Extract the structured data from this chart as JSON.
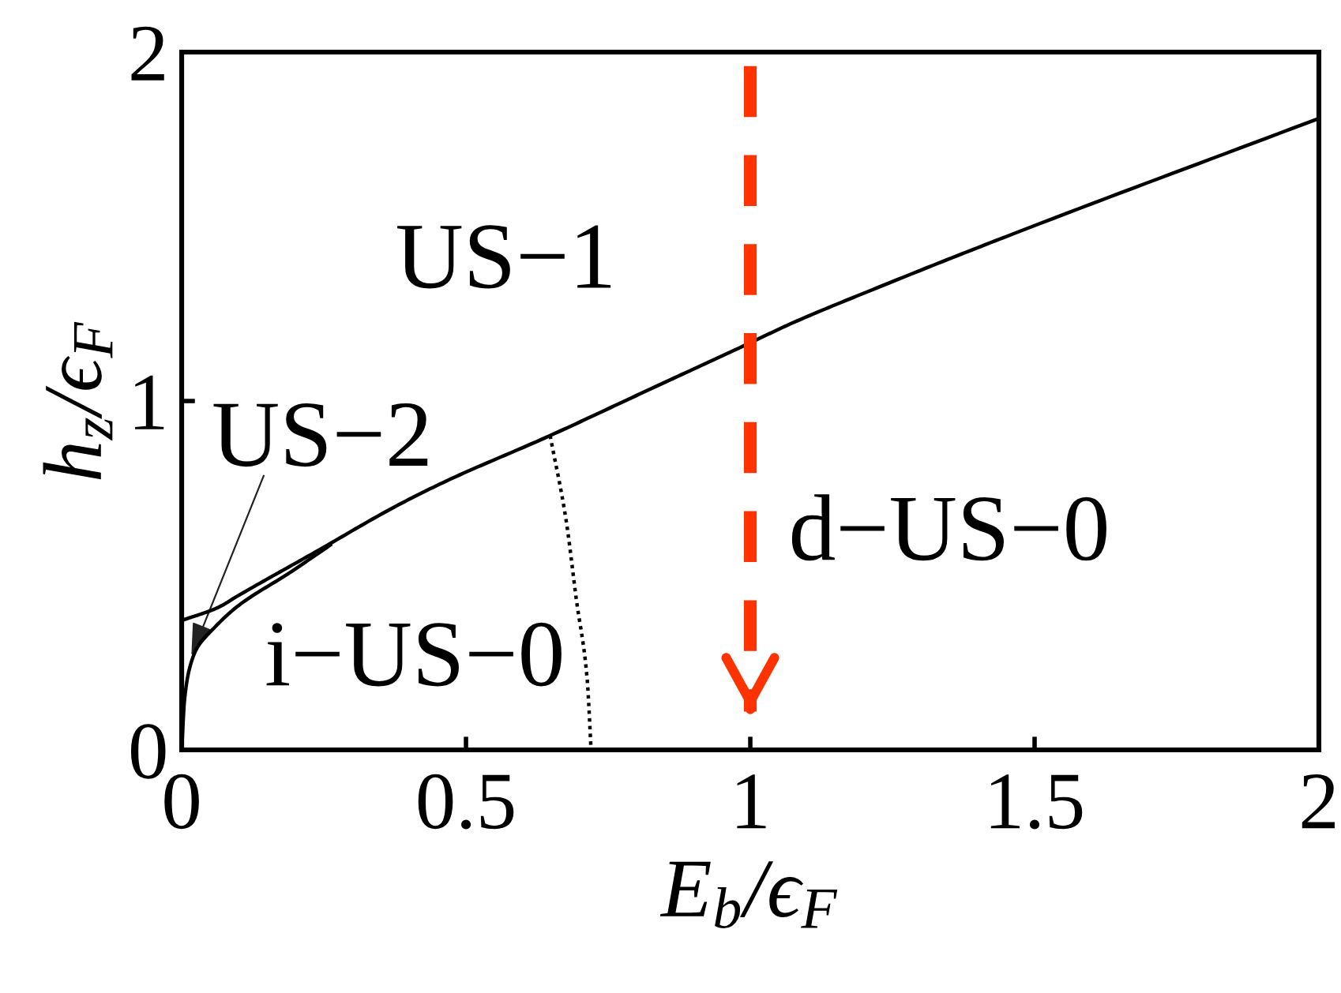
{
  "chart_data": {
    "type": "line",
    "xlabel": "E$_{b}$/ϵ$_{F}$",
    "ylabel": "h$_{z}$/ϵ$_{F}$",
    "xlim": [
      0,
      2
    ],
    "ylim": [
      0,
      2
    ],
    "xticks": [
      0,
      0.5,
      1,
      1.5,
      2
    ],
    "yticks": [
      0,
      1,
      2
    ],
    "series": [
      {
        "color": "#000000",
        "line_style": "solid",
        "x": [
          0,
          0.065,
          0.097,
          0.236,
          0.375,
          0.458,
          0.648,
          0.829,
          1.0,
          1.069,
          1.236,
          1.44,
          2.0
        ],
        "values": [
          0.371,
          0.409,
          0.44,
          0.568,
          0.697,
          0.765,
          0.901,
          1.038,
          1.167,
          1.22,
          1.333,
          1.465,
          1.81
        ]
      },
      {
        "color": "#000000",
        "line_style": "solid",
        "x": [
          0,
          0.005,
          0.014,
          0.028,
          0.056,
          0.097,
          0.19,
          0.264
        ],
        "values": [
          0,
          0.144,
          0.235,
          0.295,
          0.348,
          0.41,
          0.508,
          0.59
        ]
      },
      {
        "color": "#000000",
        "line_style": "dotted",
        "x": [
          0.648,
          0.676,
          0.694,
          0.713,
          0.72
        ],
        "values": [
          0.901,
          0.659,
          0.432,
          0.205,
          0
        ]
      },
      {
        "color": "#ff3300",
        "line_style": "dashed",
        "x": [
          1,
          1
        ],
        "values": [
          1.96,
          0.11
        ]
      }
    ],
    "annotations": [
      "US−1",
      {
        "text": "US−2",
        "x": 0.017,
        "y": 0.27
      },
      "i−US−0",
      "d−US−0"
    ]
  }
}
